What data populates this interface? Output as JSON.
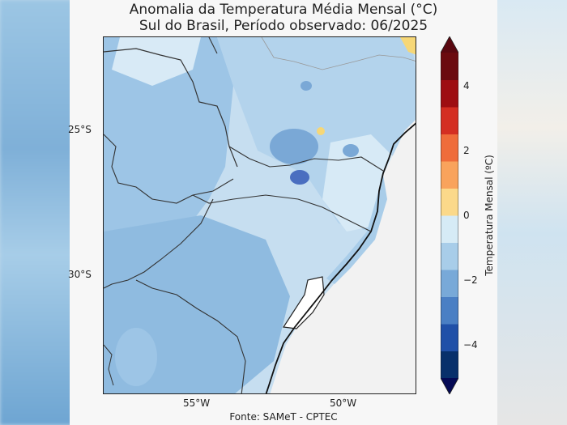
{
  "title_line1": "Anomalia da Temperatura Média Mensal (°C)",
  "title_line2": "Sul do Brasil, Período observado: 06/2025",
  "map": {
    "lat_labels": [
      "25°S",
      "30°S"
    ],
    "lon_labels": [
      "55°W",
      "50°W"
    ],
    "source": "Fonte: SAMeT - CPTEC",
    "region": "Sul do Brasil"
  },
  "colorbar": {
    "title": "Temperatura Mensal (ºC)",
    "tick_labels": [
      "4",
      "2",
      "0",
      "−2",
      "−4"
    ],
    "colors": [
      "#08306b",
      "#2050a8",
      "#4a7fc4",
      "#78a9d8",
      "#a8cde9",
      "#d6ebf6",
      "#fbd98a",
      "#f9a35c",
      "#ef6c3a",
      "#d42e22",
      "#9e0e12",
      "#6b0a0f"
    ],
    "min_color": "#050a55",
    "max_color": "#5a0810"
  },
  "anomaly_colors": {
    "very_cold": "#4a6ec0",
    "cold": "#8fbbe0",
    "cool": "#b7d6ee",
    "near_zero": "#ddeef8",
    "warm": "#f6d777"
  }
}
